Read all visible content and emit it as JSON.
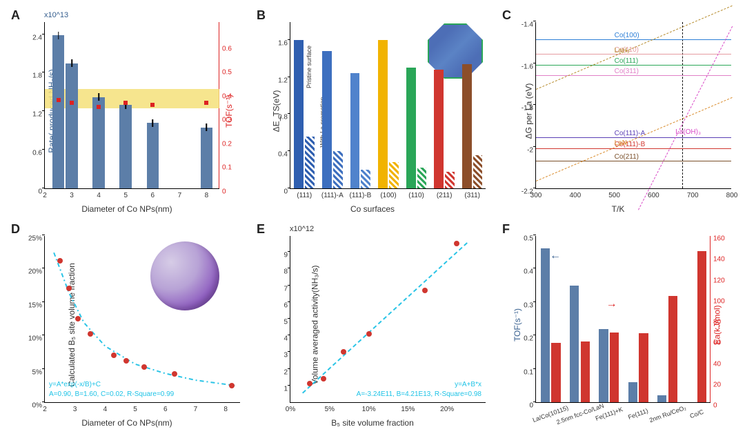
{
  "panels": {
    "A": {
      "label": "A",
      "type": "bar+scatter",
      "exp_label": "x10^13",
      "ylabel": "Rate( produced NH₃/s)",
      "ylabel_color": "#355e8e",
      "yrlabel": "TOF(s⁻¹)",
      "yrlabel_color": "#d22",
      "xlabel": "Diameter of Co NPs(nm)",
      "ylim": [
        0,
        2.6
      ],
      "yticks": [
        0.0,
        0.6,
        1.2,
        1.8,
        2.4
      ],
      "yrlim": [
        0,
        0.7
      ],
      "yrticks": [
        0.0,
        0.1,
        0.2,
        0.3,
        0.4,
        0.5,
        0.6
      ],
      "xlim": [
        2,
        8.5
      ],
      "xticks": [
        2,
        3,
        4,
        5,
        6,
        7,
        8
      ],
      "bars": [
        {
          "x": 2.5,
          "y": 2.38,
          "w": 0.45
        },
        {
          "x": 3.0,
          "y": 1.95,
          "w": 0.45
        },
        {
          "x": 4.0,
          "y": 1.42,
          "w": 0.45
        },
        {
          "x": 5.0,
          "y": 1.3,
          "w": 0.45
        },
        {
          "x": 6.0,
          "y": 1.02,
          "w": 0.45
        },
        {
          "x": 8.0,
          "y": 0.95,
          "w": 0.45
        }
      ],
      "bar_color": "#5c7ea8",
      "err_height": 0.12,
      "band_lo": 1.25,
      "band_hi": 1.55,
      "band_color": "#f5e17a",
      "tof_points": [
        {
          "x": 2.5,
          "y": 0.37
        },
        {
          "x": 3.0,
          "y": 0.36
        },
        {
          "x": 4.0,
          "y": 0.34
        },
        {
          "x": 5.0,
          "y": 0.36
        },
        {
          "x": 6.0,
          "y": 0.35
        },
        {
          "x": 8.0,
          "y": 0.36
        }
      ],
      "tof_color": "#d22"
    },
    "B": {
      "label": "B",
      "type": "grouped-bar",
      "ylabel": "ΔE_TS(eV)",
      "xlabel": "Co surfaces",
      "side_label_top": "Pristine surface",
      "side_label_bottom": "With La promotion",
      "ylim": [
        0.0,
        1.8
      ],
      "yticks": [
        0.0,
        0.4,
        0.8,
        1.2,
        1.6
      ],
      "categories": [
        "(111)",
        "(111)-A",
        "(111)-B",
        "(100)",
        "(110)",
        "(211)",
        "(311)"
      ],
      "bars_pristine": [
        1.6,
        1.48,
        1.24,
        1.6,
        1.3,
        1.28,
        1.34
      ],
      "bars_promoted": [
        0.56,
        0.4,
        0.2,
        0.28,
        0.22,
        0.18,
        0.36
      ],
      "colors": [
        "#2f5fb0",
        "#3d6fbf",
        "#5083cc",
        "#f1b300",
        "#2aa658",
        "#d0362f",
        "#8c4e2a"
      ]
    },
    "C": {
      "label": "C",
      "type": "hlines+dashed",
      "ylabel": "ΔG per La (eV)",
      "xlabel": "T/K",
      "ylim": [
        -2.2,
        -1.4
      ],
      "yticks": [
        -2.2,
        -2.0,
        -1.8,
        -1.6,
        -1.4
      ],
      "xlim": [
        300,
        800
      ],
      "xticks": [
        300,
        400,
        500,
        600,
        700,
        800
      ],
      "vline_x": 673,
      "lines": [
        {
          "label": "Co(100)",
          "y": -1.49,
          "color": "#2c7ed6"
        },
        {
          "label": "Co(110)",
          "y": -1.56,
          "color": "#e59ba0"
        },
        {
          "label": "Co(111)",
          "y": -1.61,
          "color": "#2aa658"
        },
        {
          "label": "Co(311)",
          "y": -1.66,
          "color": "#e07fc7"
        },
        {
          "label": "Co(111)-A",
          "y": -1.96,
          "color": "#5a3fb5"
        },
        {
          "label": "Co(111)-B",
          "y": -2.01,
          "color": "#d0362f"
        },
        {
          "label": "Co(211)",
          "y": -2.07,
          "color": "#7a4f2a"
        }
      ],
      "dashed": [
        {
          "label": "LaH₂",
          "p1": [
            300,
            -1.72
          ],
          "p2": [
            800,
            -1.32
          ],
          "color": "#b58a2a"
        },
        {
          "label": "LaN",
          "p1": [
            300,
            -2.16
          ],
          "p2": [
            800,
            -1.76
          ],
          "color": "#d98b2a"
        },
        {
          "label": "La(OH)₃",
          "p1": [
            560,
            -2.3
          ],
          "p2": [
            800,
            -1.42
          ],
          "color": "#d948c7"
        }
      ]
    },
    "D": {
      "label": "D",
      "type": "scatter+fit",
      "ylabel": "Calculated B₅ site volume fraction",
      "xlabel": "Diameter of Co NPs(nm)",
      "ylim": [
        0,
        25
      ],
      "yticks": [
        0,
        5,
        10,
        15,
        20,
        25
      ],
      "ytick_suffix": "%",
      "xlim": [
        2,
        8.5
      ],
      "xticks": [
        2,
        3,
        4,
        5,
        6,
        7,
        8
      ],
      "points": [
        {
          "x": 2.5,
          "y": 21.2
        },
        {
          "x": 2.8,
          "y": 17.0
        },
        {
          "x": 3.1,
          "y": 12.5
        },
        {
          "x": 3.5,
          "y": 10.2
        },
        {
          "x": 4.3,
          "y": 7.0
        },
        {
          "x": 4.7,
          "y": 6.2
        },
        {
          "x": 5.3,
          "y": 5.3
        },
        {
          "x": 6.3,
          "y": 4.2
        },
        {
          "x": 8.2,
          "y": 2.5
        }
      ],
      "curve_color": "#2ac4e6",
      "curve": [
        {
          "x": 2.3,
          "y": 22.5
        },
        {
          "x": 2.8,
          "y": 16.5
        },
        {
          "x": 3.3,
          "y": 12.0
        },
        {
          "x": 4.0,
          "y": 8.5
        },
        {
          "x": 5.0,
          "y": 5.8
        },
        {
          "x": 6.0,
          "y": 4.4
        },
        {
          "x": 7.0,
          "y": 3.4
        },
        {
          "x": 8.3,
          "y": 2.6
        }
      ],
      "point_color": "#d0362f",
      "annot1": "y=A*exp(-x/B)+C",
      "annot2": "A=0.90, B=1.60, C=0.02,  R-Square=0.99"
    },
    "E": {
      "label": "E",
      "type": "scatter+linear",
      "exp_label": "x10^12",
      "ylabel": "Volume averaged activity(NH₃/s)",
      "xlabel": "B₅ site volume fraction",
      "ylim": [
        0,
        10
      ],
      "yticks": [
        1,
        2,
        3,
        4,
        5,
        6,
        7,
        8,
        9
      ],
      "xlim": [
        0,
        25
      ],
      "xticks": [
        0,
        5,
        10,
        15,
        20
      ],
      "xtick_suffix": "%",
      "points": [
        {
          "x": 2.5,
          "y": 1.1
        },
        {
          "x": 4.2,
          "y": 1.4
        },
        {
          "x": 6.8,
          "y": 3.0
        },
        {
          "x": 10.0,
          "y": 4.1
        },
        {
          "x": 17.2,
          "y": 6.7
        },
        {
          "x": 21.2,
          "y": 9.5
        }
      ],
      "curve_color": "#2ac4e6",
      "point_color": "#d0362f",
      "line": {
        "x1": 1.5,
        "y1": 0.6,
        "x2": 22.5,
        "y2": 9.6
      },
      "annot1": "y=A+B*x",
      "annot2": "A=-3.24E11, B=4.21E13, R-Square=0.98"
    },
    "F": {
      "label": "F",
      "type": "grouped-bar-2axis",
      "ylabel": "TOF(s⁻¹)",
      "ylabel_color": "#355e8e",
      "yrlabel": "Ea(kJ/mol)",
      "yrlabel_color": "#d22",
      "ylim": [
        0,
        0.5
      ],
      "yticks": [
        0.0,
        0.1,
        0.2,
        0.3,
        0.4,
        0.5
      ],
      "yrlim": [
        0,
        160
      ],
      "yrticks": [
        0,
        20,
        40,
        60,
        80,
        100,
        120,
        140,
        160
      ],
      "categories": [
        "La/Co(10115)",
        "2.5nm fcc-Co/LaN",
        "Fe(111)+K",
        "Fe(111)",
        "2nm Ru/CeO₂",
        "Co/C"
      ],
      "tof": [
        0.46,
        0.35,
        0.22,
        0.06,
        0.02,
        null
      ],
      "ea": [
        57,
        58,
        67,
        66,
        102,
        145
      ],
      "tof_color": "#5c7ea8",
      "ea_color": "#d0362f"
    }
  }
}
